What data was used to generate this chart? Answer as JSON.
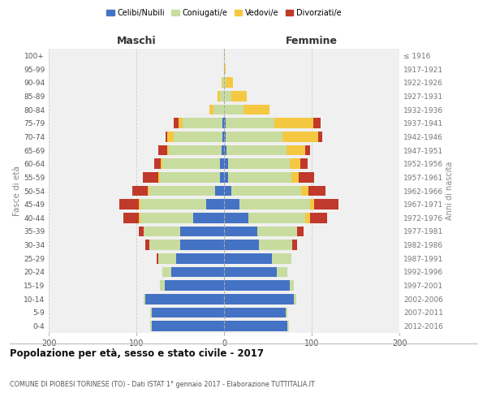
{
  "age_groups": [
    "0-4",
    "5-9",
    "10-14",
    "15-19",
    "20-24",
    "25-29",
    "30-34",
    "35-39",
    "40-44",
    "45-49",
    "50-54",
    "55-59",
    "60-64",
    "65-69",
    "70-74",
    "75-79",
    "80-84",
    "85-89",
    "90-94",
    "95-99",
    "100+"
  ],
  "birth_years": [
    "2012-2016",
    "2007-2011",
    "2002-2006",
    "1997-2001",
    "1992-1996",
    "1987-1991",
    "1982-1986",
    "1977-1981",
    "1972-1976",
    "1967-1971",
    "1962-1966",
    "1957-1961",
    "1952-1956",
    "1947-1951",
    "1942-1946",
    "1937-1941",
    "1932-1936",
    "1927-1931",
    "1922-1926",
    "1917-1921",
    "≤ 1916"
  ],
  "maschi": {
    "celibi": [
      82,
      82,
      90,
      68,
      60,
      55,
      50,
      50,
      35,
      20,
      10,
      5,
      5,
      3,
      2,
      2,
      0,
      0,
      0,
      0,
      0
    ],
    "coniugati": [
      2,
      2,
      2,
      5,
      10,
      20,
      35,
      42,
      60,
      75,
      75,
      68,
      65,
      60,
      55,
      45,
      12,
      5,
      2,
      0,
      0
    ],
    "vedovi": [
      0,
      0,
      0,
      0,
      0,
      0,
      0,
      0,
      2,
      2,
      2,
      2,
      2,
      2,
      8,
      5,
      5,
      2,
      1,
      0,
      0
    ],
    "divorziati": [
      0,
      0,
      0,
      0,
      0,
      2,
      5,
      5,
      18,
      22,
      18,
      18,
      8,
      10,
      2,
      5,
      0,
      0,
      0,
      0,
      0
    ]
  },
  "femmine": {
    "nubili": [
      72,
      70,
      80,
      75,
      60,
      55,
      40,
      38,
      28,
      18,
      8,
      5,
      5,
      3,
      2,
      2,
      0,
      0,
      0,
      0,
      0
    ],
    "coniugate": [
      2,
      2,
      2,
      5,
      12,
      22,
      38,
      45,
      65,
      80,
      80,
      72,
      70,
      68,
      65,
      55,
      22,
      8,
      2,
      0,
      0
    ],
    "vedove": [
      0,
      0,
      0,
      0,
      0,
      0,
      0,
      0,
      5,
      5,
      8,
      8,
      12,
      22,
      40,
      45,
      30,
      18,
      8,
      2,
      1
    ],
    "divorziate": [
      0,
      0,
      0,
      0,
      0,
      0,
      5,
      8,
      20,
      28,
      20,
      18,
      8,
      5,
      5,
      8,
      0,
      0,
      0,
      0,
      0
    ]
  },
  "colors": {
    "celibi_nubili": "#4472c4",
    "coniugati": "#c8dca0",
    "vedovi": "#f5c842",
    "divorziati": "#c0392b"
  },
  "xlim": 200,
  "title": "Popolazione per età, sesso e stato civile - 2017",
  "subtitle": "COMUNE DI PIOBESI TORINESE (TO) - Dati ISTAT 1° gennaio 2017 - Elaborazione TUTTITALIA.IT",
  "ylabel": "Fasce di età",
  "ylabel_right": "Anni di nascita",
  "background_color": "#f0f0f0",
  "grid_color": "#cccccc"
}
